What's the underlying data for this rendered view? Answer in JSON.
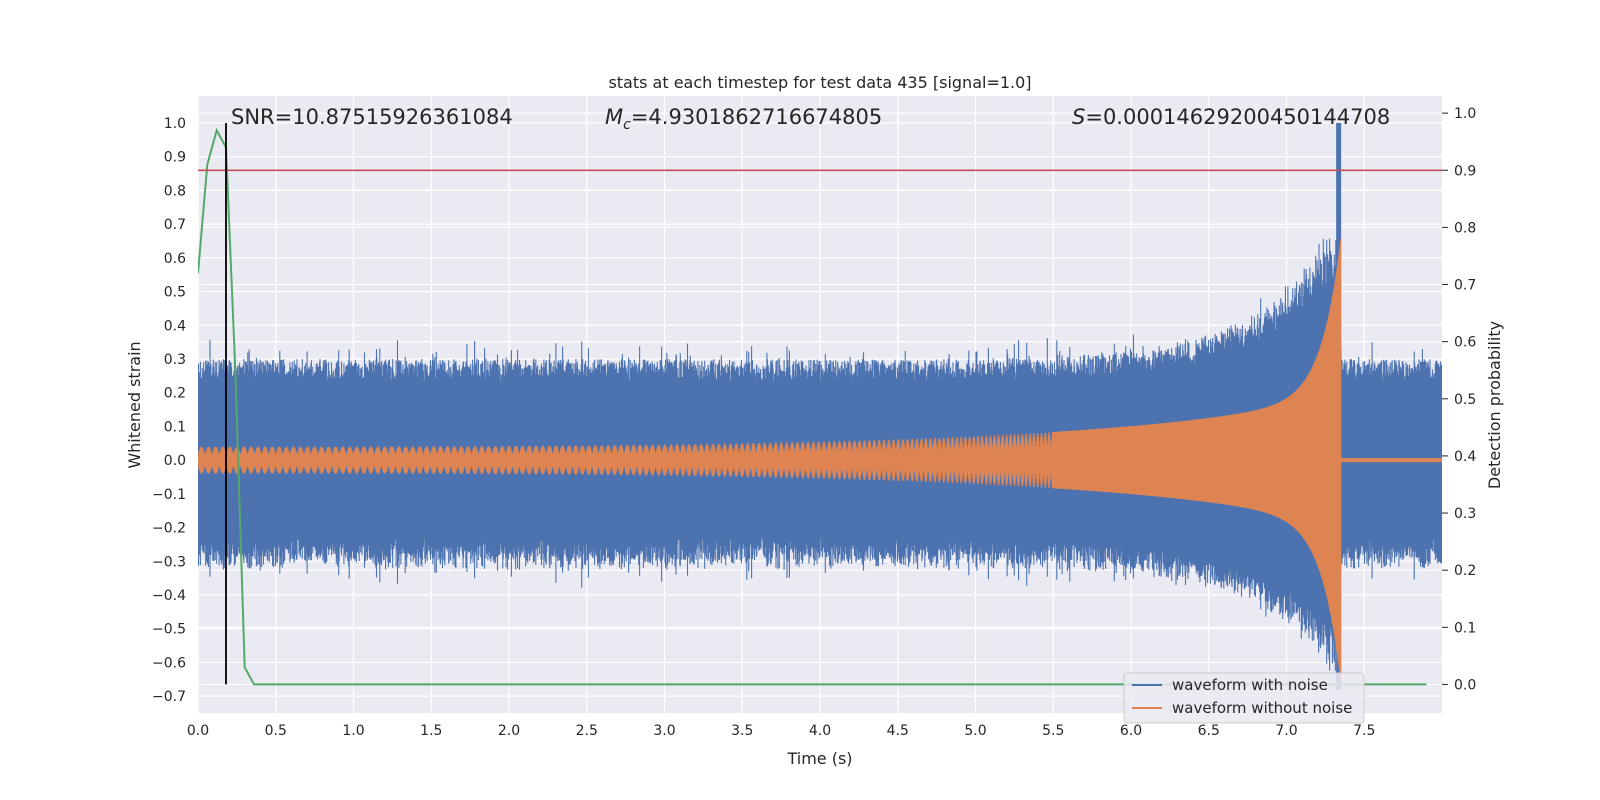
{
  "chart_data": {
    "type": "line",
    "title": "stats at each timestep for test data 435 [signal=1.0]",
    "xlabel": "Time (s)",
    "ylabel_left": "Whitened strain",
    "ylabel_right": "Detection probability",
    "xlim": [
      0.0,
      8.0
    ],
    "ylim_left": [
      -0.75,
      1.08
    ],
    "ylim_right": [
      -0.05,
      1.03
    ],
    "x_ticks": [
      "0.0",
      "0.5",
      "1.0",
      "1.5",
      "2.0",
      "2.5",
      "3.0",
      "3.5",
      "4.0",
      "4.5",
      "5.0",
      "5.5",
      "6.0",
      "6.5",
      "7.0",
      "7.5"
    ],
    "y_ticks_left": [
      "−0.7",
      "−0.6",
      "−0.5",
      "−0.4",
      "−0.3",
      "−0.2",
      "−0.1",
      "0.0",
      "0.1",
      "0.2",
      "0.3",
      "0.4",
      "0.5",
      "0.6",
      "0.7",
      "0.8",
      "0.9",
      "1.0"
    ],
    "y_ticks_right": [
      "0.0",
      "0.1",
      "0.2",
      "0.3",
      "0.4",
      "0.5",
      "0.6",
      "0.7",
      "0.8",
      "0.9",
      "1.0"
    ],
    "grid": true,
    "legend": {
      "placement": "lower-right",
      "entries": [
        "waveform with noise",
        "waveform without noise"
      ]
    },
    "annotations": {
      "snr": "SNR=10.87515926361084",
      "mc_symbol": "M",
      "mc_sub": "c",
      "mc_value": "=4.9301862716674805",
      "s_symbol": "S",
      "s_value": "=0.00014629200450144708"
    },
    "threshold_right": 0.9,
    "detection_time": 0.18,
    "merger_time": 7.35,
    "series": [
      {
        "name": "waveform with noise",
        "color": "#4c72b0",
        "description_envelope": {
          "noise_amplitude": 0.3,
          "peak_upper": 1.0,
          "peak_lower": -0.68
        }
      },
      {
        "name": "waveform without noise",
        "color": "#dd8452",
        "chirp": {
          "start_amplitude": 0.04,
          "end_amplitude_upper": 0.66,
          "end_amplitude_lower": -0.66,
          "end_time": 7.35
        }
      },
      {
        "color": "#55a868",
        "axis": "right",
        "x": [
          0.0,
          0.06,
          0.12,
          0.18,
          0.24,
          0.3,
          0.36,
          0.42,
          0.6,
          1.0,
          2.0,
          3.0,
          4.0,
          5.0,
          6.0,
          7.0,
          7.9
        ],
        "y": [
          0.72,
          0.91,
          0.97,
          0.94,
          0.55,
          0.03,
          0.0,
          0.0,
          0.0,
          0.0,
          0.0,
          0.0,
          0.0,
          0.0,
          0.0,
          0.0,
          0.0
        ]
      }
    ],
    "colors": {
      "threshold": "#c44e52",
      "detection_line": "#000000",
      "axes_bg": "#eaeaf2",
      "grid": "#ffffff"
    }
  }
}
